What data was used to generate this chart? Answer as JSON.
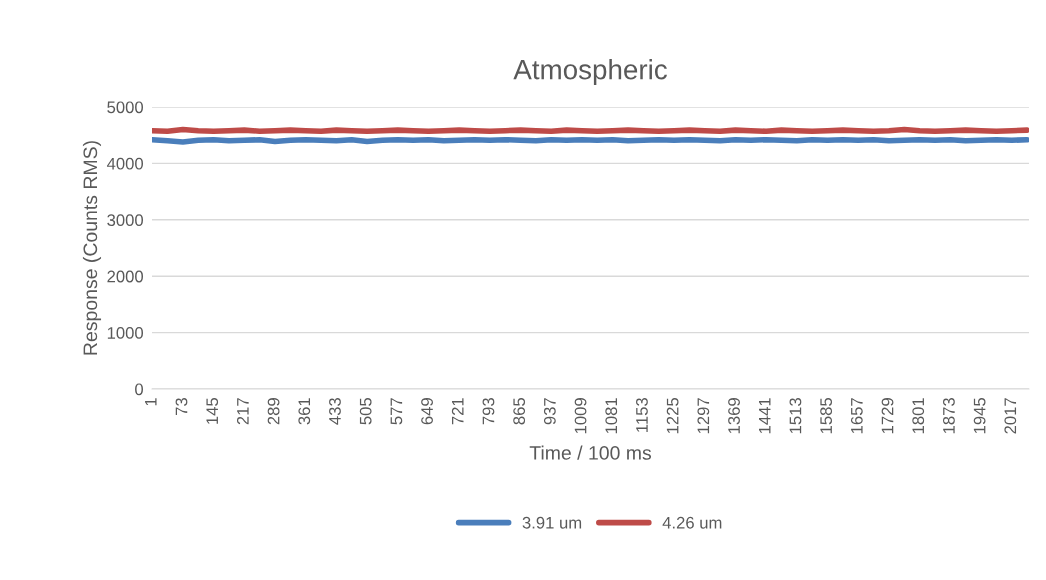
{
  "chart_data": {
    "type": "line",
    "title": "Atmospheric",
    "xlabel": "Time / 100 ms",
    "ylabel": "Response (Counts RMS)",
    "x": [
      1,
      37,
      73,
      109,
      145,
      181,
      217,
      253,
      289,
      325,
      361,
      397,
      433,
      469,
      505,
      541,
      577,
      613,
      649,
      685,
      721,
      757,
      793,
      829,
      865,
      901,
      937,
      973,
      1009,
      1045,
      1081,
      1117,
      1153,
      1189,
      1225,
      1261,
      1297,
      1333,
      1369,
      1405,
      1441,
      1477,
      1513,
      1549,
      1585,
      1621,
      1657,
      1693,
      1729,
      1765,
      1801,
      1837,
      1873,
      1909,
      1945,
      1981,
      2017,
      2053
    ],
    "series": [
      {
        "name": "3.91 um",
        "color": "#4a7ebb",
        "values": [
          4420,
          4400,
          4380,
          4410,
          4420,
          4400,
          4410,
          4420,
          4390,
          4410,
          4420,
          4410,
          4400,
          4420,
          4390,
          4410,
          4420,
          4410,
          4420,
          4400,
          4410,
          4420,
          4410,
          4420,
          4410,
          4400,
          4420,
          4410,
          4420,
          4410,
          4420,
          4400,
          4410,
          4420,
          4410,
          4420,
          4410,
          4400,
          4420,
          4410,
          4420,
          4410,
          4400,
          4420,
          4410,
          4420,
          4410,
          4420,
          4400,
          4410,
          4420,
          4410,
          4420,
          4400,
          4410,
          4420,
          4410,
          4420
        ]
      },
      {
        "name": "4.26 um",
        "color": "#be4b48",
        "values": [
          4580,
          4570,
          4600,
          4580,
          4570,
          4580,
          4590,
          4570,
          4580,
          4590,
          4580,
          4570,
          4590,
          4580,
          4570,
          4580,
          4590,
          4580,
          4570,
          4580,
          4590,
          4580,
          4570,
          4580,
          4590,
          4580,
          4570,
          4590,
          4580,
          4570,
          4580,
          4590,
          4580,
          4570,
          4580,
          4590,
          4580,
          4570,
          4590,
          4580,
          4570,
          4590,
          4580,
          4570,
          4580,
          4590,
          4580,
          4570,
          4580,
          4600,
          4580,
          4570,
          4580,
          4590,
          4580,
          4570,
          4580,
          4590
        ]
      }
    ],
    "xlim": [
      0.5,
      2057.5
    ],
    "xticks": [
      1,
      73,
      145,
      217,
      289,
      361,
      433,
      505,
      577,
      649,
      721,
      793,
      865,
      937,
      1009,
      1081,
      1153,
      1225,
      1297,
      1369,
      1441,
      1513,
      1585,
      1657,
      1729,
      1801,
      1873,
      1945,
      2017
    ],
    "ylim": [
      0,
      5000
    ],
    "yticks": [
      0,
      1000,
      2000,
      3000,
      4000,
      5000
    ],
    "grid": "y",
    "legend": "bottom",
    "marker": "none",
    "line_style": "solid"
  }
}
